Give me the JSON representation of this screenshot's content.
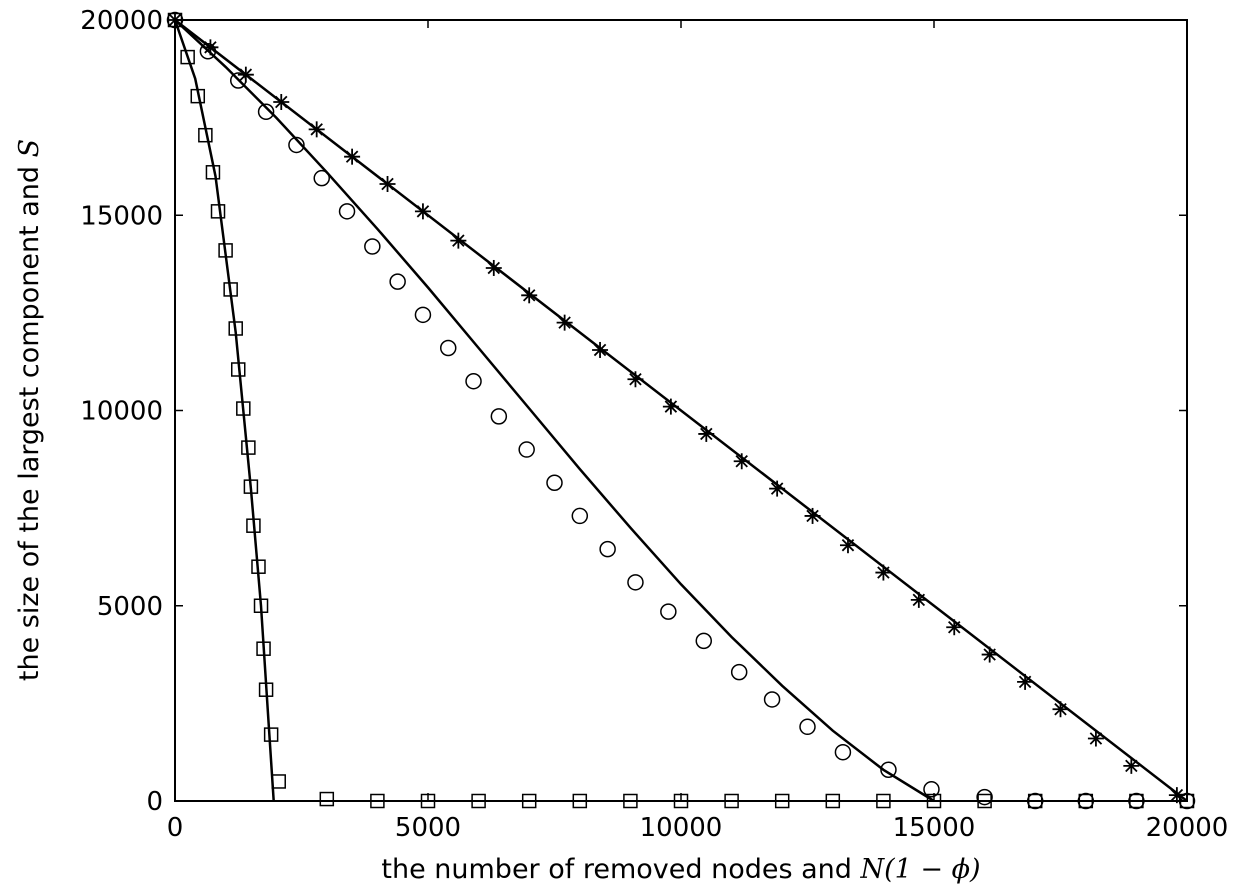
{
  "chart_data": {
    "type": "scatter",
    "title": "",
    "xlabel_text": "the number of removed nodes and ",
    "xlabel_math": "N(1 − ϕ)",
    "ylabel_text": "the size of the largest component and ",
    "ylabel_math": "S",
    "xlim": [
      0,
      20000
    ],
    "ylim": [
      0,
      20000
    ],
    "x_ticks": [
      0,
      5000,
      10000,
      15000,
      20000
    ],
    "y_ticks": [
      0,
      5000,
      10000,
      15000,
      20000
    ],
    "x_tick_labels": [
      "0",
      "5000",
      "10000",
      "15000",
      "20000"
    ],
    "y_tick_labels": [
      "0",
      "5000",
      "10000",
      "15000",
      "20000"
    ],
    "grid": false,
    "legend": "none",
    "series": [
      {
        "marker": "star",
        "x": [
          0,
          700,
          1400,
          2100,
          2800,
          3500,
          4200,
          4900,
          5600,
          6300,
          7000,
          7700,
          8400,
          9100,
          9800,
          10500,
          11200,
          11900,
          12600,
          13300,
          14000,
          14700,
          15400,
          16100,
          16800,
          17500,
          18200,
          18900,
          19800
        ],
        "y": [
          20000,
          19300,
          18600,
          17900,
          17200,
          16500,
          15800,
          15100,
          14350,
          13650,
          12950,
          12250,
          11550,
          10800,
          10100,
          9400,
          8700,
          8000,
          7300,
          6550,
          5850,
          5150,
          4450,
          3750,
          3050,
          2350,
          1600,
          900,
          150
        ]
      },
      {
        "marker": "circle",
        "x": [
          0,
          650,
          1250,
          1800,
          2400,
          2900,
          3400,
          3900,
          4400,
          4900,
          5400,
          5900,
          6400,
          6950,
          7500,
          8000,
          8550,
          9100,
          9750,
          10450,
          11150,
          11800,
          12500,
          13200,
          14100,
          14950,
          16000,
          17000,
          18000,
          19000,
          20000
        ],
        "y": [
          20000,
          19200,
          18450,
          17650,
          16800,
          15950,
          15100,
          14200,
          13300,
          12450,
          11600,
          10750,
          9850,
          9000,
          8150,
          7300,
          6450,
          5600,
          4850,
          4100,
          3300,
          2600,
          1900,
          1250,
          800,
          300,
          100,
          0,
          0,
          0,
          0
        ]
      },
      {
        "marker": "square",
        "x": [
          0,
          250,
          450,
          600,
          750,
          850,
          1000,
          1100,
          1200,
          1250,
          1350,
          1450,
          1500,
          1550,
          1650,
          1700,
          1750,
          1800,
          1900,
          2050,
          3000,
          4000,
          5000,
          6000,
          7000,
          8000,
          9000,
          10000,
          11000,
          12000,
          13000,
          14000,
          15000,
          16000,
          17000,
          18000,
          19000,
          20000
        ],
        "y": [
          20000,
          19050,
          18050,
          17050,
          16100,
          15100,
          14100,
          13100,
          12100,
          11050,
          10050,
          9050,
          8050,
          7050,
          6000,
          5000,
          3900,
          2850,
          1700,
          500,
          50,
          0,
          0,
          0,
          0,
          0,
          0,
          0,
          0,
          0,
          0,
          0,
          0,
          0,
          0,
          0,
          0,
          0
        ]
      }
    ],
    "curves": [
      {
        "x": [
          0,
          20000
        ],
        "y": [
          20000,
          0
        ]
      },
      {
        "x": [
          0,
          1000,
          2000,
          3000,
          4000,
          5000,
          6000,
          7000,
          8000,
          9000,
          10000,
          11000,
          12000,
          13000,
          14000,
          15000
        ],
        "y": [
          20000,
          18800,
          17500,
          16100,
          14650,
          13150,
          11600,
          10050,
          8500,
          7000,
          5550,
          4200,
          2950,
          1800,
          800,
          0
        ]
      },
      {
        "x": [
          0,
          400,
          800,
          1200,
          1500,
          1700,
          1850,
          1950
        ],
        "y": [
          20000,
          18500,
          16000,
          12000,
          8000,
          5000,
          2000,
          0
        ]
      }
    ]
  }
}
